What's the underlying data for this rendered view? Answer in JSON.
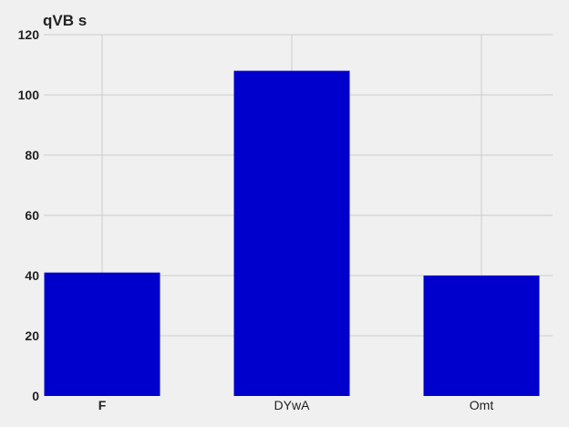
{
  "chart_data": {
    "type": "bar",
    "title": "qVB s",
    "xlabel": "",
    "ylabel": "",
    "categories": [
      "F",
      "DYwA",
      "Omt"
    ],
    "series": [
      {
        "values": [
          41,
          108,
          40
        ]
      }
    ],
    "ylim": [
      0,
      120
    ],
    "yticks": [
      0,
      20,
      40,
      60,
      80,
      100,
      120
    ],
    "grid": true,
    "legend": "none",
    "bar_color": "#0000cd",
    "background_color": "#f0f0f0",
    "grid_color": "#cbcbcb",
    "bold_x_tick": "F"
  }
}
